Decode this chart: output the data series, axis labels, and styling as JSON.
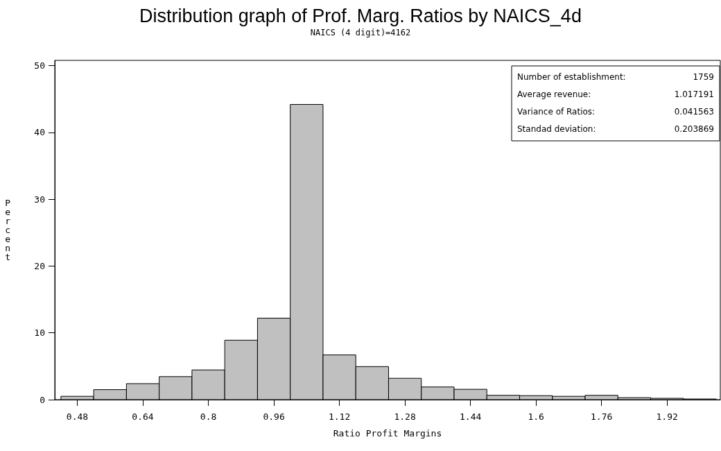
{
  "chart_data": {
    "type": "histogram",
    "title": "Distribution graph of Prof. Marg. Ratios by NAICS_4d",
    "subtitle": "NAICS (4 digit)=4162",
    "xlabel": "Ratio Profit Margins",
    "ylabel": "Percent",
    "bins": [
      0.44,
      0.52,
      0.6,
      0.68,
      0.76,
      0.84,
      0.92,
      1.0,
      1.08,
      1.16,
      1.24,
      1.32,
      1.4,
      1.48,
      1.56,
      1.64,
      1.72,
      1.8,
      1.88,
      1.96,
      2.04
    ],
    "values": [
      0.5,
      1.5,
      2.4,
      3.45,
      4.45,
      8.9,
      12.2,
      44.2,
      6.7,
      4.95,
      3.2,
      1.9,
      1.55,
      0.65,
      0.6,
      0.5,
      0.65,
      0.3,
      0.2,
      0.1
    ],
    "color": "#c0c0c0",
    "xlim": [
      0.425,
      2.05
    ],
    "xticks": [
      0.48,
      0.64,
      0.8,
      0.96,
      1.12,
      1.28,
      1.44,
      1.6,
      1.76,
      1.92
    ],
    "ylim": [
      0,
      50.8
    ],
    "yticks": [
      0,
      10,
      20,
      30,
      40,
      50
    ],
    "annotations": [
      "Number of establishment:",
      "1759",
      "Average revenue:",
      "1.017191",
      "Variance of Ratios:",
      "0.041563",
      "Standad deviation:",
      "0.203869"
    ]
  }
}
